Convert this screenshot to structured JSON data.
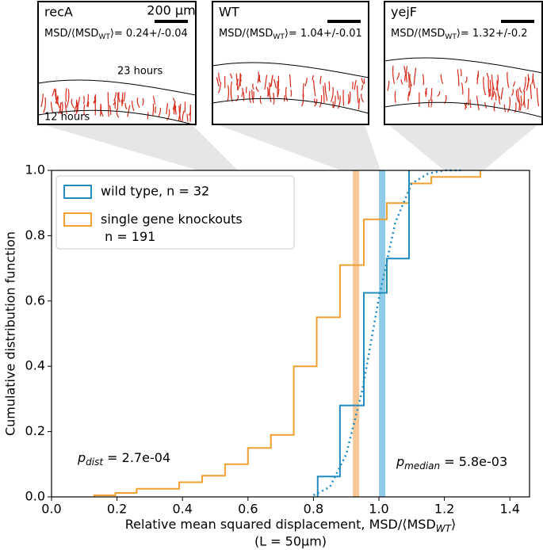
{
  "chart_data": {
    "type": "step",
    "insets": [
      {
        "name": "recA",
        "scale": "200 µm",
        "msd_prefix": "MSD/⟨MSD",
        "msd_sub": "WT",
        "msd_suffix": "⟩= 0.24+/-0.04",
        "top_label": "23 hours",
        "bottom_label": "12 hours"
      },
      {
        "name": "WT",
        "msd_prefix": "MSD/⟨MSD",
        "msd_sub": "WT",
        "msd_suffix": "⟩= 1.04+/-0.01"
      },
      {
        "name": "yejF",
        "msd_prefix": "MSD/⟨MSD",
        "msd_sub": "WT",
        "msd_suffix": "⟩= 1.32+/-0.2"
      }
    ],
    "series": [
      {
        "name": "wild type, n = 32",
        "color": "#1f8bbf",
        "x": [
          0.813,
          0.881,
          0.954,
          1.024,
          1.092,
          1.092
        ],
        "values": [
          0.0625,
          0.28,
          0.625,
          0.73,
          0.94,
          1.0
        ],
        "median": 1.01,
        "median_color": "#8fcbe6"
      },
      {
        "name": "single gene knockouts\n n = 191",
        "color": "#f0a030",
        "x": [
          0.13,
          0.195,
          0.26,
          0.39,
          0.46,
          0.53,
          0.6,
          0.67,
          0.74,
          0.81,
          0.881,
          0.954,
          1.024,
          1.092,
          1.16,
          1.31
        ],
        "values": [
          0.005,
          0.012,
          0.025,
          0.045,
          0.065,
          0.1,
          0.15,
          0.19,
          0.4,
          0.55,
          0.71,
          0.85,
          0.9,
          0.96,
          0.98,
          1.0
        ],
        "median": 0.93,
        "median_color": "#f7c99a"
      }
    ],
    "fit": {
      "color": "#1f8bbf",
      "x": [
        0.8,
        0.85,
        0.9,
        0.95,
        1.0,
        1.05,
        1.1,
        1.15,
        1.2,
        1.25
      ],
      "values": [
        0.005,
        0.03,
        0.13,
        0.33,
        0.61,
        0.84,
        0.96,
        0.99,
        1.0,
        1.0
      ]
    },
    "ylabel": "Cumulative distribution function",
    "xlabel_prefix": "Relative mean squared displacement, MSD/⟨MSD",
    "xlabel_sub": "WT",
    "xlabel_suffix": "⟩",
    "xlabel_line2": "(L = 50μm)",
    "annotations": [
      {
        "p": "p",
        "sub": "dist",
        "text": " = 2.7e-04"
      },
      {
        "p": "p",
        "sub": "median",
        "text": " = 5.8e-03"
      }
    ],
    "xlim": [
      0,
      1.46
    ],
    "ylim": [
      0,
      1
    ],
    "xticks": [
      {
        "value": 0,
        "label": "0.0"
      },
      0.2,
      0.4,
      0.6,
      0.8,
      {
        "value": 1,
        "label": "1.0"
      },
      1.2,
      1.4
    ],
    "yticks": [
      {
        "value": 0,
        "label": "0.0"
      },
      0.2,
      0.4,
      0.6,
      0.8,
      {
        "value": 1,
        "label": "1.0"
      }
    ],
    "legend": "upper left"
  }
}
